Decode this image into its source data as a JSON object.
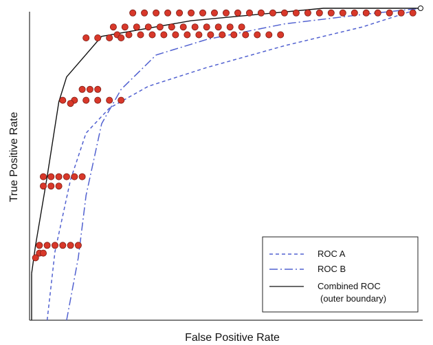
{
  "chart_data": {
    "type": "line",
    "title": "",
    "xlabel": "False Positive Rate",
    "ylabel": "True Positive Rate",
    "xlim": [
      0,
      1
    ],
    "ylim": [
      0,
      1
    ],
    "grid": false,
    "legend_placement": "bottom-right",
    "legend": {
      "roc_a": "ROC A",
      "roc_b": "ROC B",
      "combined_line1": "Combined ROC",
      "combined_line2": "(outer boundary)"
    },
    "series": [
      {
        "name": "ROC A",
        "style": "dashed",
        "color": "#5060d0",
        "x": [
          0.04,
          0.06,
          0.1,
          0.14,
          0.2,
          0.3,
          0.45,
          0.65,
          0.85,
          1.0
        ],
        "y": [
          0.0,
          0.22,
          0.45,
          0.6,
          0.68,
          0.75,
          0.81,
          0.88,
          0.94,
          1.0
        ]
      },
      {
        "name": "ROC B",
        "style": "dashdot",
        "color": "#5060d0",
        "x": [
          0.09,
          0.12,
          0.14,
          0.18,
          0.23,
          0.32,
          0.45,
          0.65,
          0.85,
          1.0
        ],
        "y": [
          0.0,
          0.2,
          0.4,
          0.63,
          0.74,
          0.85,
          0.9,
          0.95,
          0.98,
          1.0
        ]
      },
      {
        "name": "Combined ROC (outer boundary)",
        "style": "solid",
        "color": "#111111",
        "x": [
          0.0,
          0.01,
          0.04,
          0.07,
          0.09,
          0.18,
          0.41,
          0.75,
          1.0
        ],
        "y": [
          0.15,
          0.24,
          0.46,
          0.7,
          0.78,
          0.91,
          0.96,
          1.0,
          1.0
        ]
      }
    ],
    "point_color": "#d8382a",
    "point_groups": [
      {
        "x": [
          0.26,
          0.29,
          0.32,
          0.35,
          0.38,
          0.41,
          0.44,
          0.47,
          0.5,
          0.53,
          0.56,
          0.59,
          0.62,
          0.65,
          0.68,
          0.71,
          0.74,
          0.77,
          0.8,
          0.83,
          0.86,
          0.89,
          0.92,
          0.95,
          0.98
        ],
        "y": 0.985
      },
      {
        "x": [
          0.21,
          0.24,
          0.27,
          0.3,
          0.33,
          0.36,
          0.39,
          0.42,
          0.45,
          0.48,
          0.51,
          0.54
        ],
        "y": 0.94
      },
      {
        "x": [
          0.22,
          0.25,
          0.28,
          0.31,
          0.34,
          0.37,
          0.4,
          0.43,
          0.46,
          0.49,
          0.52,
          0.55,
          0.58,
          0.61,
          0.64
        ],
        "y": 0.915
      },
      {
        "x": [
          0.14,
          0.17,
          0.2,
          0.23
        ],
        "y": 0.905
      },
      {
        "x": [
          0.13,
          0.15,
          0.17
        ],
        "y": 0.74
      },
      {
        "x": [
          0.08,
          0.11,
          0.14,
          0.17,
          0.2,
          0.23
        ],
        "y": 0.705
      },
      {
        "x": [
          0.1
        ],
        "y": 0.695
      },
      {
        "x": [
          0.03,
          0.05,
          0.07,
          0.09,
          0.11,
          0.13
        ],
        "y": 0.46
      },
      {
        "x": [
          0.03,
          0.05,
          0.07
        ],
        "y": 0.43
      },
      {
        "x": [
          0.02,
          0.04,
          0.06,
          0.08,
          0.1,
          0.12
        ],
        "y": 0.24
      },
      {
        "x": [
          0.02,
          0.03
        ],
        "y": 0.215
      },
      {
        "x": [
          0.01
        ],
        "y": 0.2
      }
    ]
  }
}
